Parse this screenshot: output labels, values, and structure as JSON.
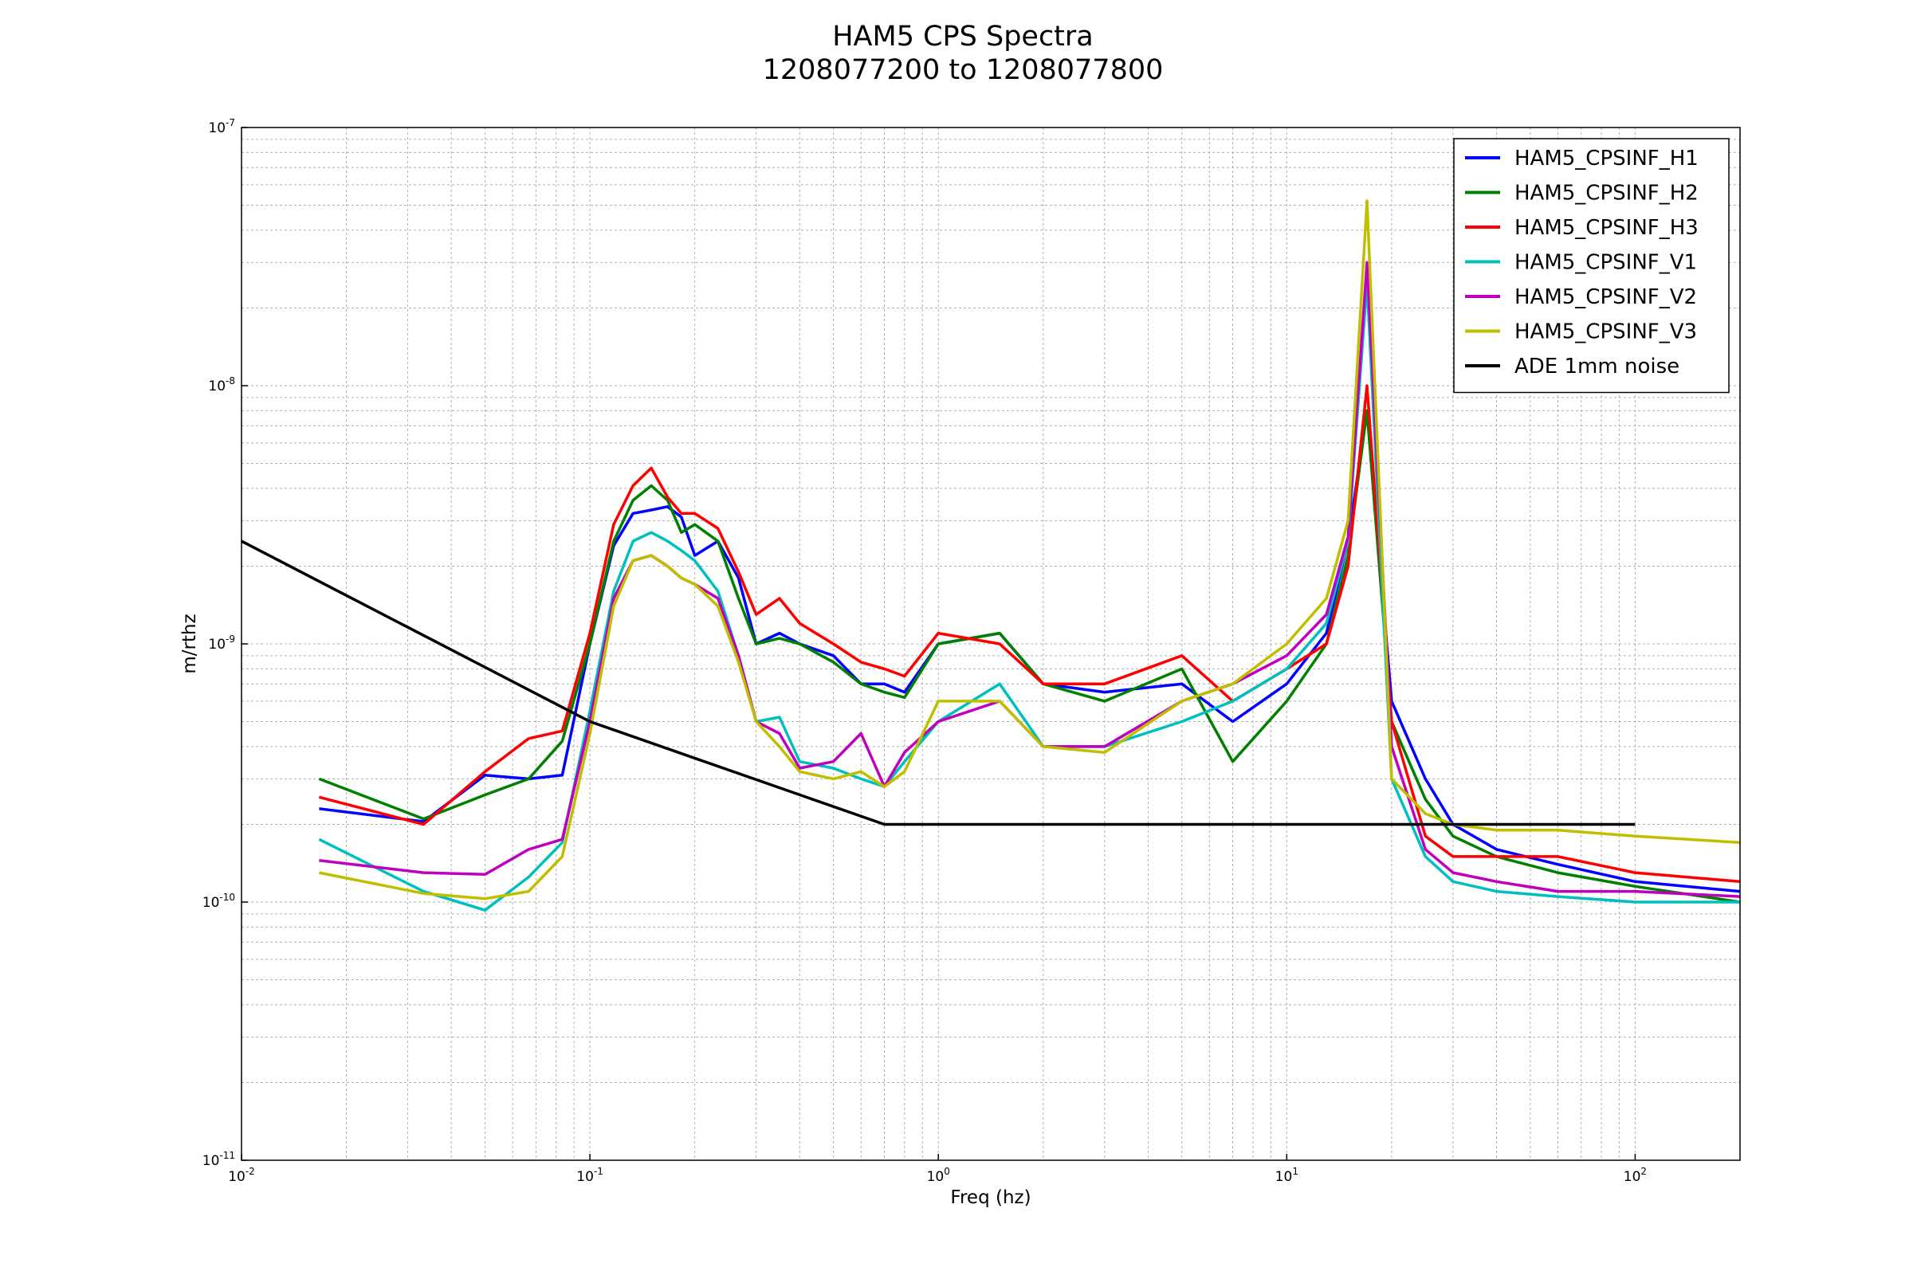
{
  "chart_data": {
    "type": "line",
    "title": "HAM5 CPS Spectra",
    "subtitle": "1208077200 to 1208077800",
    "xlabel": "Freq (hz)",
    "ylabel": "m/rthz",
    "x_scale": "log",
    "y_scale": "log",
    "xlim": [
      0.01,
      200
    ],
    "ylim": [
      1e-11,
      1e-07
    ],
    "grid": true,
    "legend_position": "top-right",
    "x_ticks": [
      {
        "value": 0.01,
        "base": "10",
        "exp": "-2"
      },
      {
        "value": 0.1,
        "base": "10",
        "exp": "-1"
      },
      {
        "value": 1,
        "base": "10",
        "exp": "0"
      },
      {
        "value": 10,
        "base": "10",
        "exp": "1"
      },
      {
        "value": 100,
        "base": "10",
        "exp": "2"
      }
    ],
    "y_ticks": [
      {
        "value": 1e-11,
        "base": "10",
        "exp": "-11"
      },
      {
        "value": 1e-10,
        "base": "10",
        "exp": "-10"
      },
      {
        "value": 1e-09,
        "base": "10",
        "exp": "-9"
      },
      {
        "value": 1e-08,
        "base": "10",
        "exp": "-8"
      },
      {
        "value": 1e-07,
        "base": "10",
        "exp": "-7"
      }
    ],
    "series": [
      {
        "name": "HAM5_CPSINF_H1",
        "color": "#0000ff",
        "x": [
          0.0167,
          0.0333,
          0.05,
          0.0667,
          0.0833,
          0.1,
          0.117,
          0.133,
          0.15,
          0.167,
          0.183,
          0.2,
          0.233,
          0.267,
          0.3,
          0.35,
          0.4,
          0.5,
          0.6,
          0.7,
          0.8,
          1.0,
          1.5,
          2,
          3,
          5,
          7,
          10,
          13,
          15,
          17,
          20,
          25,
          30,
          40,
          60,
          100,
          200
        ],
        "y": [
          2.3e-10,
          2.05e-10,
          3.1e-10,
          3e-10,
          3.1e-10,
          1e-09,
          2.4e-09,
          3.2e-09,
          3.3e-09,
          3.4e-09,
          3.1e-09,
          2.2e-09,
          2.5e-09,
          1.8e-09,
          1e-09,
          1.1e-09,
          1e-09,
          9e-10,
          7e-10,
          7e-10,
          6.5e-10,
          1e-09,
          1.1e-09,
          7e-10,
          6.5e-10,
          7e-10,
          5e-10,
          7e-10,
          1.1e-09,
          2.5e-09,
          8e-09,
          6e-10,
          3e-10,
          2e-10,
          1.6e-10,
          1.4e-10,
          1.2e-10,
          1.1e-10
        ]
      },
      {
        "name": "HAM5_CPSINF_H2",
        "color": "#008000",
        "x": [
          0.0167,
          0.0333,
          0.05,
          0.0667,
          0.0833,
          0.1,
          0.117,
          0.133,
          0.15,
          0.167,
          0.183,
          0.2,
          0.233,
          0.267,
          0.3,
          0.35,
          0.4,
          0.5,
          0.6,
          0.7,
          0.8,
          1.0,
          1.5,
          2,
          3,
          5,
          7,
          10,
          13,
          15,
          17,
          20,
          25,
          30,
          40,
          60,
          100,
          200
        ],
        "y": [
          3e-10,
          2.1e-10,
          2.6e-10,
          3e-10,
          4.2e-10,
          1e-09,
          2.5e-09,
          3.6e-09,
          4.1e-09,
          3.6e-09,
          2.7e-09,
          2.9e-09,
          2.5e-09,
          1.5e-09,
          1e-09,
          1.05e-09,
          1e-09,
          8.5e-10,
          7e-10,
          6.5e-10,
          6.2e-10,
          1e-09,
          1.1e-09,
          7e-10,
          6e-10,
          8e-10,
          3.5e-10,
          6e-10,
          1e-09,
          2.2e-09,
          8e-09,
          5e-10,
          2.5e-10,
          1.8e-10,
          1.5e-10,
          1.3e-10,
          1.15e-10,
          1e-10
        ]
      },
      {
        "name": "HAM5_CPSINF_H3",
        "color": "#ff0000",
        "x": [
          0.0167,
          0.0333,
          0.05,
          0.0667,
          0.0833,
          0.1,
          0.117,
          0.133,
          0.15,
          0.167,
          0.183,
          0.2,
          0.233,
          0.267,
          0.3,
          0.35,
          0.4,
          0.5,
          0.6,
          0.7,
          0.8,
          1.0,
          1.5,
          2,
          3,
          5,
          7,
          10,
          13,
          15,
          17,
          20,
          25,
          30,
          40,
          60,
          100,
          200
        ],
        "y": [
          2.55e-10,
          2e-10,
          3.2e-10,
          4.3e-10,
          4.6e-10,
          1.1e-09,
          2.9e-09,
          4.1e-09,
          4.8e-09,
          3.7e-09,
          3.2e-09,
          3.2e-09,
          2.8e-09,
          1.9e-09,
          1.3e-09,
          1.5e-09,
          1.2e-09,
          1e-09,
          8.5e-10,
          8e-10,
          7.5e-10,
          1.1e-09,
          1e-09,
          7e-10,
          7e-10,
          9e-10,
          6e-10,
          8e-10,
          1e-09,
          2e-09,
          1e-08,
          5e-10,
          1.8e-10,
          1.5e-10,
          1.5e-10,
          1.5e-10,
          1.3e-10,
          1.2e-10
        ]
      },
      {
        "name": "HAM5_CPSINF_V1",
        "color": "#00bfbf",
        "x": [
          0.0167,
          0.0333,
          0.05,
          0.0667,
          0.0833,
          0.1,
          0.117,
          0.133,
          0.15,
          0.167,
          0.183,
          0.2,
          0.233,
          0.267,
          0.3,
          0.35,
          0.4,
          0.5,
          0.6,
          0.7,
          0.8,
          1.0,
          1.5,
          2,
          3,
          5,
          7,
          10,
          13,
          15,
          17,
          20,
          25,
          30,
          40,
          60,
          100,
          200
        ],
        "y": [
          1.75e-10,
          1.1e-10,
          9.3e-11,
          1.25e-10,
          1.7e-10,
          5.5e-10,
          1.6e-09,
          2.5e-09,
          2.7e-09,
          2.5e-09,
          2.3e-09,
          2.1e-09,
          1.6e-09,
          9e-10,
          5e-10,
          5.2e-10,
          3.5e-10,
          3.3e-10,
          3e-10,
          2.8e-10,
          3.5e-10,
          5e-10,
          7e-10,
          4e-10,
          4e-10,
          5e-10,
          6e-10,
          8e-10,
          1.2e-09,
          2.5e-09,
          2.5e-08,
          3e-10,
          1.5e-10,
          1.2e-10,
          1.1e-10,
          1.05e-10,
          1e-10,
          1e-10
        ]
      },
      {
        "name": "HAM5_CPSINF_V2",
        "color": "#bf00bf",
        "x": [
          0.0167,
          0.0333,
          0.05,
          0.0667,
          0.0833,
          0.1,
          0.117,
          0.133,
          0.15,
          0.167,
          0.183,
          0.2,
          0.233,
          0.267,
          0.3,
          0.35,
          0.4,
          0.5,
          0.6,
          0.7,
          0.8,
          1.0,
          1.5,
          2,
          3,
          5,
          7,
          10,
          13,
          15,
          17,
          20,
          25,
          30,
          40,
          60,
          100,
          200
        ],
        "y": [
          1.45e-10,
          1.3e-10,
          1.28e-10,
          1.6e-10,
          1.75e-10,
          5e-10,
          1.5e-09,
          2.1e-09,
          2.2e-09,
          2e-09,
          1.8e-09,
          1.7e-09,
          1.5e-09,
          9e-10,
          5e-10,
          4.5e-10,
          3.3e-10,
          3.5e-10,
          4.5e-10,
          2.8e-10,
          3.8e-10,
          5e-10,
          6e-10,
          4e-10,
          4e-10,
          6e-10,
          7e-10,
          9e-10,
          1.3e-09,
          2.6e-09,
          3e-08,
          4e-10,
          1.6e-10,
          1.3e-10,
          1.2e-10,
          1.1e-10,
          1.1e-10,
          1.05e-10
        ]
      },
      {
        "name": "HAM5_CPSINF_V3",
        "color": "#bfbf00",
        "x": [
          0.0167,
          0.0333,
          0.05,
          0.0667,
          0.0833,
          0.1,
          0.117,
          0.133,
          0.15,
          0.167,
          0.183,
          0.2,
          0.233,
          0.267,
          0.3,
          0.35,
          0.4,
          0.5,
          0.6,
          0.7,
          0.8,
          1.0,
          1.5,
          2,
          3,
          5,
          7,
          10,
          13,
          15,
          17,
          20,
          25,
          30,
          40,
          60,
          100,
          200
        ],
        "y": [
          1.3e-10,
          1.08e-10,
          1.03e-10,
          1.1e-10,
          1.5e-10,
          4.5e-10,
          1.4e-09,
          2.1e-09,
          2.2e-09,
          2e-09,
          1.8e-09,
          1.7e-09,
          1.4e-09,
          8.5e-10,
          5e-10,
          4e-10,
          3.2e-10,
          3e-10,
          3.2e-10,
          2.8e-10,
          3.2e-10,
          6e-10,
          6e-10,
          4e-10,
          3.8e-10,
          6e-10,
          7e-10,
          1e-09,
          1.5e-09,
          3e-09,
          5.2e-08,
          3e-10,
          2.2e-10,
          2e-10,
          1.9e-10,
          1.9e-10,
          1.8e-10,
          1.7e-10
        ]
      },
      {
        "name": "ADE 1mm noise",
        "color": "#000000",
        "x": [
          0.01,
          0.1,
          0.7,
          100
        ],
        "y": [
          2.5e-09,
          5e-10,
          2e-10,
          2e-10
        ]
      }
    ]
  }
}
